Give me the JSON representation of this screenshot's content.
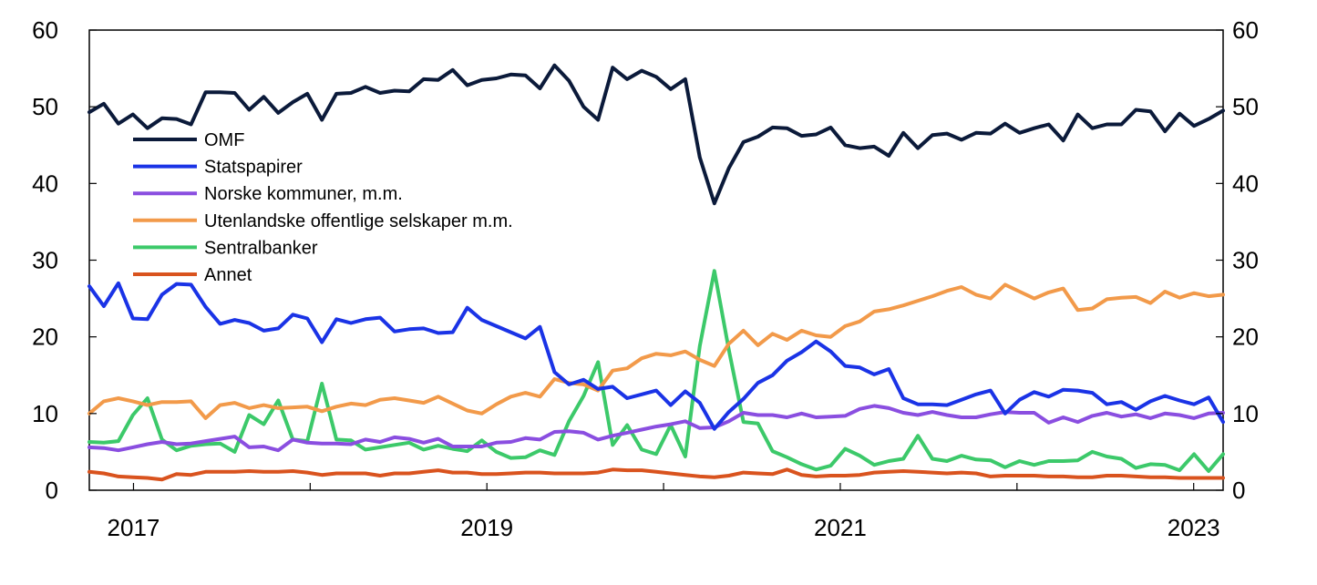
{
  "chart_data": {
    "type": "line",
    "title": "",
    "xlabel": "",
    "ylabel": "",
    "ylim": [
      0,
      60
    ],
    "yticks": [
      0,
      10,
      20,
      30,
      40,
      50,
      60
    ],
    "y_axis_right": true,
    "grid": false,
    "legend_position": "top-left",
    "x_start": "2016-10",
    "x_end": "2023-03",
    "xtick_labels": [
      "2017",
      "2019",
      "2021",
      "2023"
    ],
    "series": [
      {
        "name": "OMF",
        "color": "#0b1a3a",
        "values": [
          49.3,
          50.4,
          47.8,
          49.0,
          47.2,
          48.5,
          48.4,
          47.7,
          51.9,
          51.9,
          51.8,
          49.6,
          51.3,
          49.2,
          50.6,
          51.7,
          48.3,
          51.7,
          51.8,
          52.6,
          51.8,
          52.1,
          52.0,
          53.6,
          53.5,
          54.8,
          52.8,
          53.5,
          53.7,
          54.2,
          54.1,
          52.4,
          55.4,
          53.4,
          50.0,
          48.3,
          55.1,
          53.6,
          54.7,
          53.9,
          52.3,
          53.6,
          43.4,
          37.4,
          42.0,
          45.4,
          46.1,
          47.3,
          47.2,
          46.2,
          46.4,
          47.3,
          45.0,
          44.6,
          44.8,
          43.6,
          46.6,
          44.6,
          46.3,
          46.5,
          45.7,
          46.6,
          46.5,
          47.8,
          46.6,
          47.2,
          47.7,
          45.6,
          49.0,
          47.2,
          47.7,
          47.7,
          49.6,
          49.4,
          46.8,
          49.1,
          47.5,
          48.4,
          49.5
        ]
      },
      {
        "name": "Statspapirer",
        "color": "#1a33e6",
        "values": [
          26.6,
          24.0,
          27.0,
          22.4,
          22.3,
          25.5,
          26.9,
          26.8,
          23.9,
          21.7,
          22.2,
          21.8,
          20.8,
          21.1,
          22.9,
          22.4,
          19.3,
          22.3,
          21.8,
          22.3,
          22.5,
          20.7,
          21.0,
          21.1,
          20.5,
          20.6,
          23.8,
          22.2,
          21.4,
          20.6,
          19.8,
          21.3,
          15.4,
          13.8,
          14.4,
          13.2,
          13.5,
          12.0,
          12.5,
          13.0,
          11.1,
          12.9,
          11.4,
          8.0,
          10.2,
          11.9,
          14.0,
          15.0,
          16.9,
          18.0,
          19.4,
          18.1,
          16.2,
          16.0,
          15.1,
          15.8,
          12.0,
          11.2,
          11.2,
          11.1,
          11.8,
          12.5,
          13.0,
          10.0,
          11.8,
          12.8,
          12.2,
          13.1,
          13.0,
          12.7,
          11.2,
          11.5,
          10.5,
          11.6,
          12.3,
          11.7,
          11.2,
          12.1,
          8.9
        ]
      },
      {
        "name": "Norske kommuner, m.m.",
        "color": "#8a4ee0",
        "values": [
          5.6,
          5.5,
          5.2,
          5.6,
          6.0,
          6.3,
          6.0,
          6.1,
          6.4,
          6.7,
          7.0,
          5.6,
          5.7,
          5.2,
          6.6,
          6.2,
          6.1,
          6.1,
          6.0,
          6.6,
          6.3,
          6.9,
          6.7,
          6.2,
          6.7,
          5.7,
          5.7,
          5.7,
          6.2,
          6.3,
          6.8,
          6.6,
          7.6,
          7.7,
          7.5,
          6.6,
          7.1,
          7.5,
          7.9,
          8.3,
          8.6,
          9.0,
          8.1,
          8.2,
          9.0,
          10.1,
          9.8,
          9.8,
          9.5,
          10.0,
          9.5,
          9.6,
          9.7,
          10.6,
          11.0,
          10.7,
          10.1,
          9.8,
          10.2,
          9.8,
          9.5,
          9.5,
          9.9,
          10.2,
          10.1,
          10.1,
          8.8,
          9.5,
          8.9,
          9.7,
          10.1,
          9.6,
          9.9,
          9.4,
          10.0,
          9.8,
          9.4,
          10.0,
          10.1
        ]
      },
      {
        "name": "Utenlandske offentlige selskaper m.m.",
        "color": "#f29a4a",
        "values": [
          10.0,
          11.6,
          12.0,
          11.6,
          11.1,
          11.5,
          11.5,
          11.6,
          9.4,
          11.1,
          11.4,
          10.7,
          11.1,
          10.7,
          10.8,
          10.9,
          10.3,
          10.9,
          11.3,
          11.1,
          11.8,
          12.0,
          11.7,
          11.4,
          12.2,
          11.3,
          10.4,
          10.0,
          11.2,
          12.2,
          12.7,
          12.2,
          14.5,
          14.0,
          13.8,
          13.0,
          15.6,
          15.9,
          17.2,
          17.8,
          17.6,
          18.1,
          17.0,
          16.2,
          19.1,
          20.8,
          18.9,
          20.4,
          19.6,
          20.8,
          20.2,
          20.0,
          21.4,
          22.0,
          23.3,
          23.6,
          24.1,
          24.7,
          25.3,
          26.0,
          26.5,
          25.5,
          25.0,
          26.8,
          25.9,
          25.0,
          25.8,
          26.3,
          23.5,
          23.7,
          24.9,
          25.1,
          25.2,
          24.4,
          25.9,
          25.1,
          25.7,
          25.3,
          25.5
        ]
      },
      {
        "name": "Sentralbanker",
        "color": "#3cc96a",
        "values": [
          6.3,
          6.2,
          6.4,
          9.8,
          12.0,
          6.6,
          5.2,
          5.8,
          6.0,
          6.1,
          5.0,
          9.8,
          8.6,
          11.7,
          6.6,
          6.4,
          13.9,
          6.6,
          6.5,
          5.3,
          5.6,
          5.9,
          6.2,
          5.3,
          5.8,
          5.4,
          5.1,
          6.5,
          5.0,
          4.2,
          4.3,
          5.2,
          4.6,
          9.0,
          12.3,
          16.7,
          5.9,
          8.5,
          5.3,
          4.7,
          8.5,
          4.4,
          18.8,
          28.6,
          18.3,
          8.9,
          8.7,
          5.1,
          4.3,
          3.4,
          2.7,
          3.2,
          5.4,
          4.5,
          3.3,
          3.8,
          4.1,
          7.1,
          4.1,
          3.8,
          4.5,
          4.0,
          3.9,
          3.0,
          3.8,
          3.3,
          3.8,
          3.8,
          3.9,
          5.0,
          4.4,
          4.1,
          2.9,
          3.4,
          3.3,
          2.6,
          4.7,
          2.5,
          4.7
        ]
      },
      {
        "name": "Annet",
        "color": "#d9531e",
        "values": [
          2.4,
          2.2,
          1.8,
          1.7,
          1.6,
          1.4,
          2.1,
          2.0,
          2.4,
          2.4,
          2.4,
          2.5,
          2.4,
          2.4,
          2.5,
          2.3,
          2.0,
          2.2,
          2.2,
          2.2,
          1.9,
          2.2,
          2.2,
          2.4,
          2.6,
          2.3,
          2.3,
          2.1,
          2.1,
          2.2,
          2.3,
          2.3,
          2.2,
          2.2,
          2.2,
          2.3,
          2.7,
          2.6,
          2.6,
          2.4,
          2.2,
          2.0,
          1.8,
          1.7,
          1.9,
          2.3,
          2.2,
          2.1,
          2.7,
          2.0,
          1.8,
          1.9,
          1.9,
          2.0,
          2.3,
          2.4,
          2.5,
          2.4,
          2.3,
          2.2,
          2.3,
          2.2,
          1.8,
          1.9,
          1.9,
          1.9,
          1.8,
          1.8,
          1.7,
          1.7,
          1.9,
          1.9,
          1.8,
          1.7,
          1.7,
          1.6,
          1.6,
          1.6,
          1.6
        ]
      }
    ]
  }
}
